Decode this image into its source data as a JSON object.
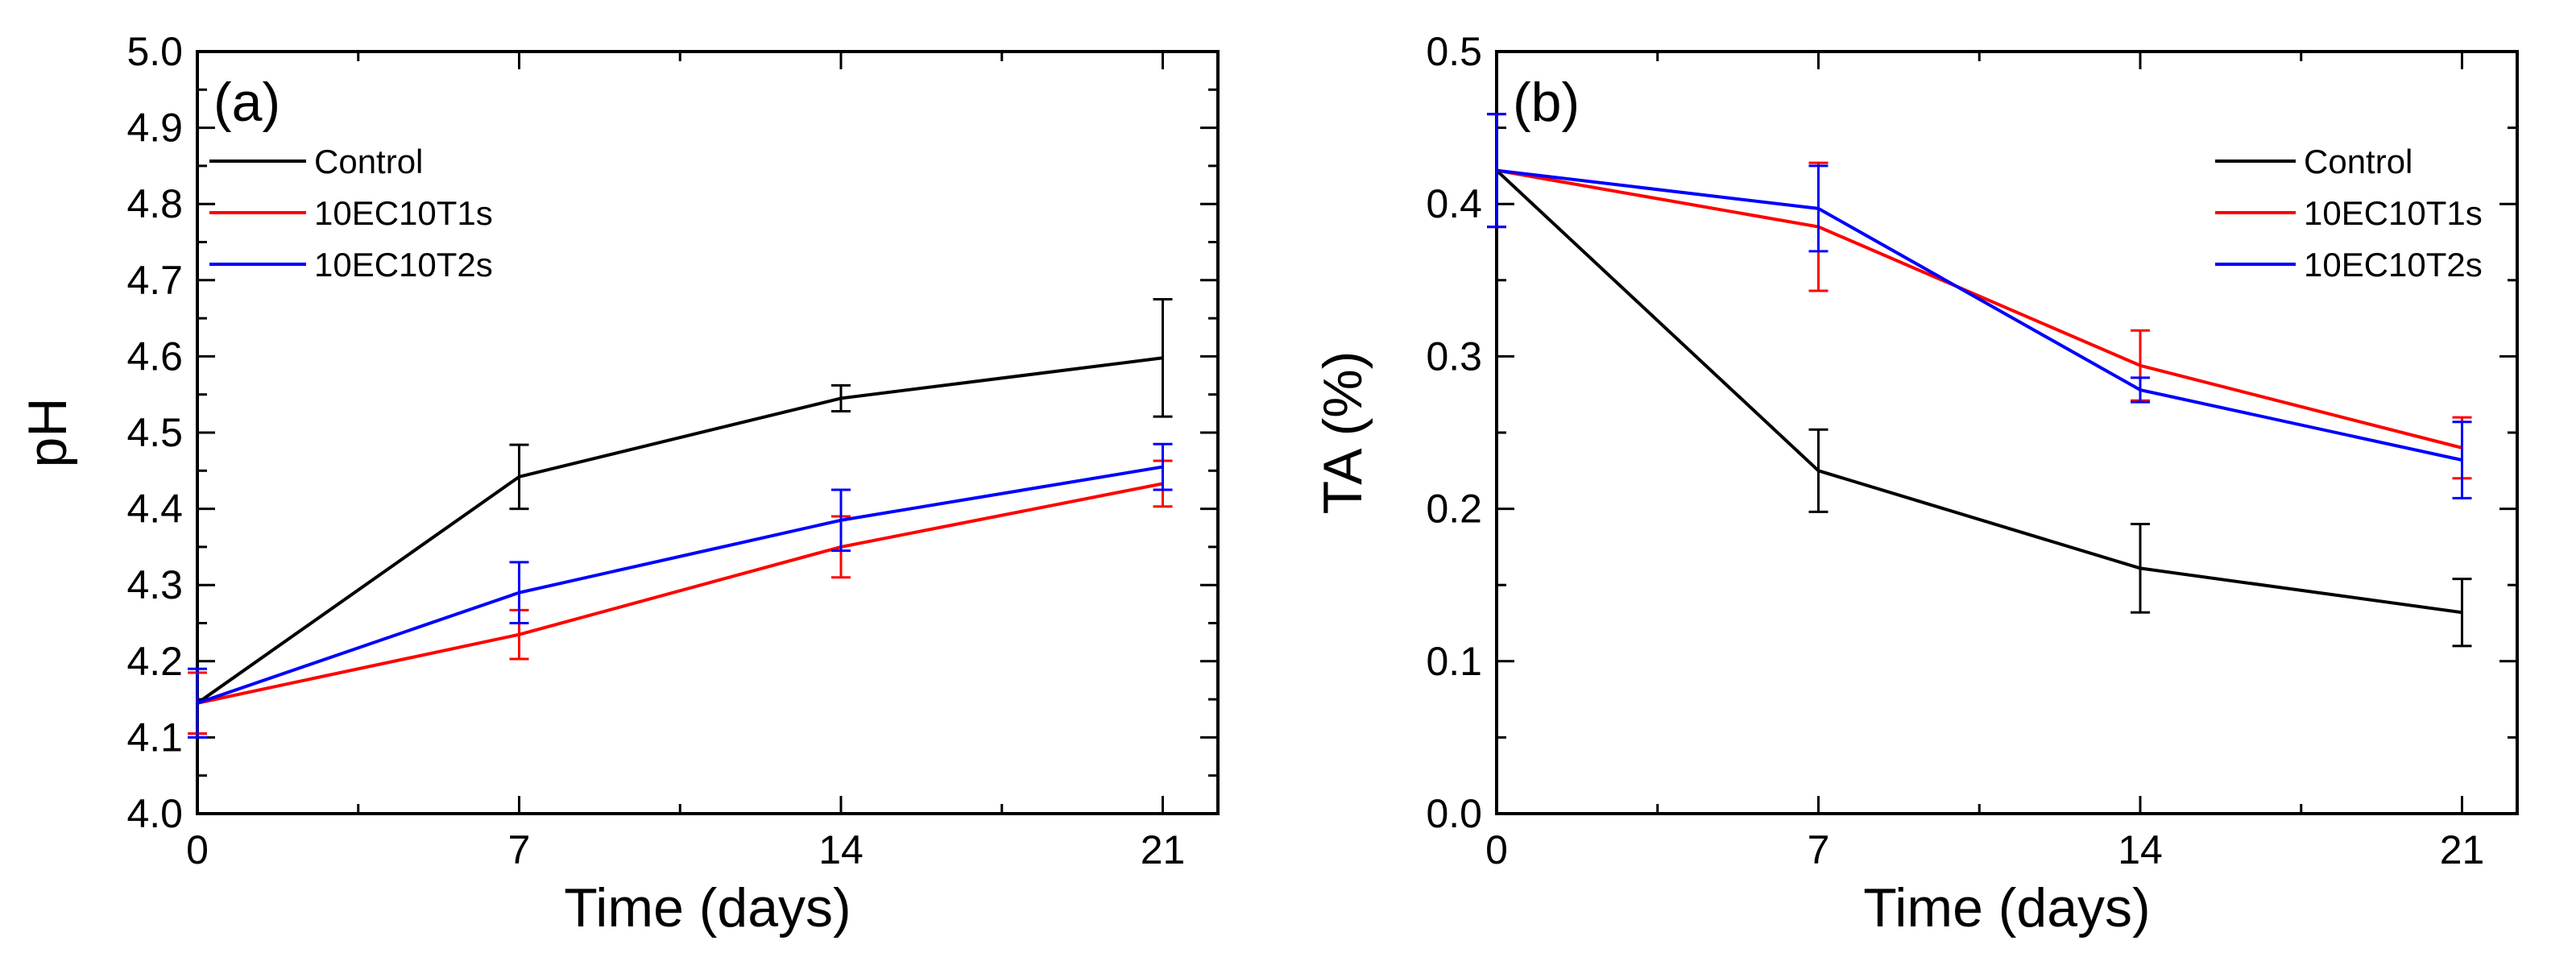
{
  "chart_data": [
    {
      "type": "line",
      "panel_label": "(a)",
      "xlabel": "Time (days)",
      "ylabel": "pH",
      "x": [
        0,
        7,
        14,
        21
      ],
      "x_ticks": [
        0,
        7,
        14,
        21
      ],
      "x_tick_labels": [
        "0",
        "7",
        "14",
        "21"
      ],
      "xlim": [
        0,
        22.2
      ],
      "ylim": [
        4.0,
        5.0
      ],
      "y_ticks": [
        4.0,
        4.1,
        4.2,
        4.3,
        4.4,
        4.5,
        4.6,
        4.7,
        4.8,
        4.9,
        5.0
      ],
      "y_tick_labels": [
        "4.0",
        "4.1",
        "4.2",
        "4.3",
        "4.4",
        "4.5",
        "4.6",
        "4.7",
        "4.8",
        "4.9",
        "5.0"
      ],
      "legend_position": "top-left",
      "grid": false,
      "series": [
        {
          "name": "Control",
          "color": "#000000",
          "values": [
            4.145,
            4.442,
            4.545,
            4.598
          ],
          "errors": [
            0.04,
            0.042,
            0.017,
            0.077
          ]
        },
        {
          "name": "10EC10T1s",
          "color": "#ff0000",
          "values": [
            4.145,
            4.235,
            4.35,
            4.433
          ],
          "errors": [
            0.04,
            0.032,
            0.04,
            0.03
          ]
        },
        {
          "name": "10EC10T2s",
          "color": "#0000ff",
          "values": [
            4.145,
            4.29,
            4.385,
            4.455
          ],
          "errors": [
            0.045,
            0.04,
            0.04,
            0.03
          ]
        }
      ]
    },
    {
      "type": "line",
      "panel_label": "(b)",
      "xlabel": "Time (days)",
      "ylabel": "TA (%)",
      "x": [
        0,
        7,
        14,
        21
      ],
      "x_ticks": [
        0,
        7,
        14,
        21
      ],
      "x_tick_labels": [
        "0",
        "7",
        "14",
        "21"
      ],
      "xlim": [
        0,
        22.2
      ],
      "ylim": [
        0.0,
        0.5
      ],
      "y_ticks": [
        0.0,
        0.1,
        0.2,
        0.3,
        0.4,
        0.5
      ],
      "y_tick_labels": [
        "0.0",
        "0.1",
        "0.2",
        "0.3",
        "0.4",
        "0.5"
      ],
      "legend_position": "top-right",
      "grid": false,
      "series": [
        {
          "name": "Control",
          "color": "#000000",
          "values": [
            0.422,
            0.225,
            0.161,
            0.132
          ],
          "errors": [
            0.037,
            0.027,
            0.029,
            0.022
          ]
        },
        {
          "name": "10EC10T1s",
          "color": "#ff0000",
          "values": [
            0.422,
            0.385,
            0.294,
            0.24
          ],
          "errors": [
            0.037,
            0.042,
            0.023,
            0.02
          ]
        },
        {
          "name": "10EC10T2s",
          "color": "#0000ff",
          "values": [
            0.422,
            0.397,
            0.278,
            0.232
          ],
          "errors": [
            0.037,
            0.028,
            0.008,
            0.025
          ]
        }
      ]
    }
  ]
}
